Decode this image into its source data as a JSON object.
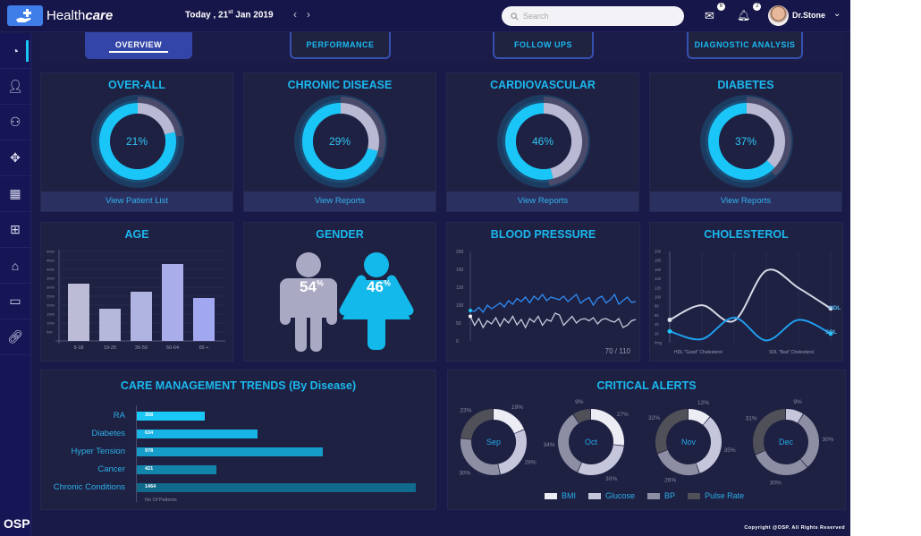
{
  "header": {
    "brand_light": "Health",
    "brand_bold": "care",
    "date_prefix": "Today , 21",
    "date_sup": "st",
    "date_suffix": " Jan 2019",
    "search_placeholder": "Search",
    "mail_count": "6",
    "notif_count": "2",
    "user_name": "Dr.Stone"
  },
  "sidebar": {
    "items": [
      "dashboard-icon",
      "user-icon",
      "team-icon",
      "handshake-icon",
      "calendar-icon",
      "medical-kit-icon",
      "doctor-icon",
      "monitor-icon",
      "link-icon"
    ],
    "logo": "OSP"
  },
  "tabs": [
    "OVERVIEW",
    "PERFORMANCE",
    "FOLLOW UPS",
    "DIAGNOSTIC ANALYSIS"
  ],
  "summary": [
    {
      "title": "OVER-ALL",
      "value": 21,
      "label": "21%",
      "link": "View Patient List"
    },
    {
      "title": "CHRONIC  DISEASE",
      "value": 29,
      "label": "29%",
      "link": "View Reports"
    },
    {
      "title": "CARDIOVASCULAR",
      "value": 46,
      "label": "46%",
      "link": "View Reports"
    },
    {
      "title": "DIABETES",
      "value": 37,
      "label": "37%",
      "link": "View Reports"
    }
  ],
  "colors": {
    "accent": "#1ac6f7",
    "gray": "#b9b9d4",
    "card": "#1f2142"
  },
  "age": {
    "title": "AGE",
    "chart_data": {
      "type": "bar",
      "categories": [
        "9-18",
        "19-25",
        "26-50",
        "50-64",
        "65 +"
      ],
      "values": [
        3200,
        1800,
        2750,
        4300,
        2400
      ],
      "yticks": [
        "5000",
        "4500",
        "4000",
        "3500",
        "3000",
        "2500",
        "2000",
        "1500",
        "1000",
        "500"
      ],
      "ylim": [
        0,
        5000
      ]
    }
  },
  "gender": {
    "title": "GENDER",
    "male": "54",
    "female": "46",
    "unit": "%"
  },
  "blood_pressure": {
    "title": "BLOOD PRESSURE",
    "reading": "70 / 110",
    "chart_data": {
      "type": "line",
      "yticks": [
        "200",
        "150",
        "130",
        "100",
        "50",
        "0"
      ],
      "ylim": [
        0,
        200
      ],
      "series": [
        {
          "values": [
            68,
            66,
            75,
            64,
            80,
            72,
            78,
            85,
            76,
            90,
            82,
            95,
            88,
            98,
            85,
            100,
            92,
            104,
            90,
            98,
            95,
            92,
            100,
            88,
            96,
            104,
            84,
            92,
            97,
            80,
            95,
            100,
            85,
            92,
            104,
            82,
            90,
            98,
            86,
            88
          ]
        },
        {
          "values": [
            55,
            35,
            50,
            30,
            45,
            38,
            52,
            33,
            50,
            40,
            55,
            36,
            48,
            30,
            50,
            42,
            55,
            35,
            48,
            44,
            62,
            58,
            35,
            45,
            55,
            40,
            48,
            50,
            45,
            52,
            38,
            48,
            50,
            45,
            42,
            50,
            30,
            35,
            45,
            48
          ]
        }
      ]
    }
  },
  "cholesterol": {
    "title": "CHOLESTEROL",
    "hdl_label": "HDL",
    "sdl_label": "SDL",
    "xlabels": [
      "HDL \"Good\" Cholesterol",
      "SDL \"Bad\" Cholesterol"
    ],
    "chart_data": {
      "type": "line",
      "yticks": [
        "200",
        "180",
        "160",
        "140",
        "120",
        "100",
        "80",
        "60",
        "40",
        "20",
        "0mg"
      ],
      "ylim": [
        0,
        200
      ],
      "series": [
        {
          "name": "HDL",
          "values": [
            50,
            82,
            48,
            158,
            120,
            75
          ]
        },
        {
          "name": "SDL",
          "values": [
            25,
            8,
            55,
            5,
            50,
            20
          ]
        }
      ]
    }
  },
  "care": {
    "title": "CARE MANAGEMENT TRENDS (By Disease)",
    "xlabel": "No Of Patients",
    "chart_data": {
      "type": "bar",
      "categories": [
        "RA",
        "Diabetes",
        "Hyper Tension",
        "Cancer",
        "Chronic Conditions"
      ],
      "values": [
        358,
        634,
        978,
        421,
        1464
      ],
      "colors": [
        "#1bc7f7",
        "#18b4e6",
        "#159cc9",
        "#1385ad",
        "#106a8c"
      ]
    }
  },
  "alerts": {
    "title": "CRITICAL ALERTS",
    "legend": [
      "BMI",
      "Glucose",
      "BP",
      "Pulse Rate"
    ],
    "legend_colors": [
      "#ececf4",
      "#c5c6dc",
      "#8d8ea3",
      "#505158"
    ],
    "chart_data": {
      "type": "pie",
      "months": [
        {
          "label": "Sep",
          "values": [
            19,
            28,
            30,
            23
          ]
        },
        {
          "label": "Oct",
          "values": [
            27,
            30,
            34,
            9
          ]
        },
        {
          "label": "Nov",
          "values": [
            12,
            35,
            26,
            32
          ]
        },
        {
          "label": "Dec",
          "values": [
            9,
            30,
            30,
            31
          ]
        }
      ]
    }
  },
  "footer": {
    "copyright": "Copyright @OSP. All Rights Reserved"
  }
}
